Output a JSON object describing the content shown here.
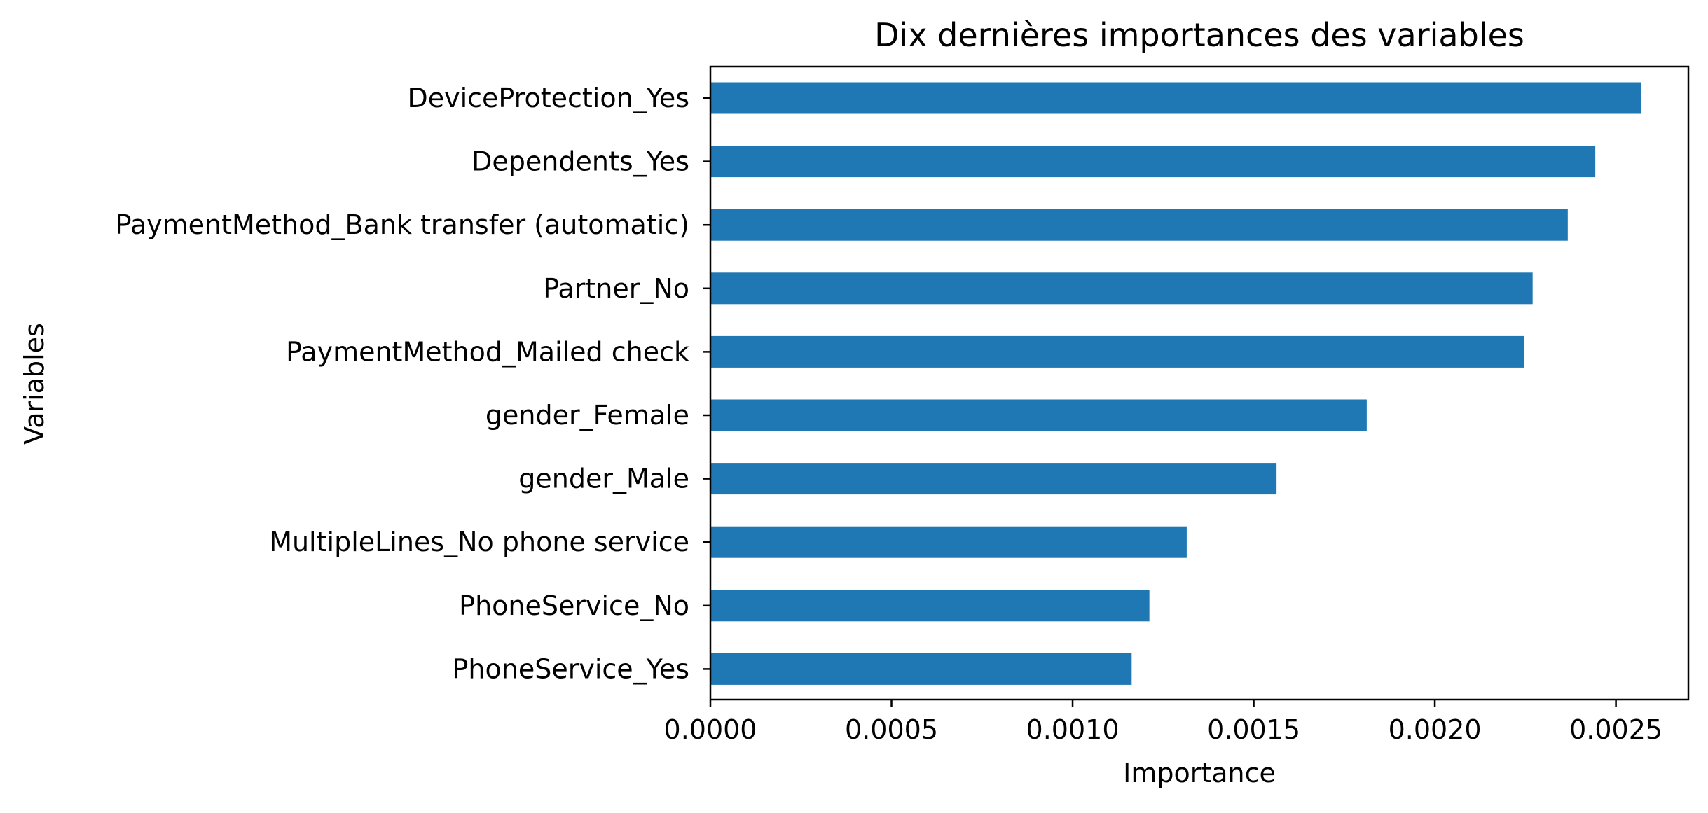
{
  "chart_data": {
    "type": "bar",
    "orientation": "horizontal",
    "title": "Dix dernières importances des variables",
    "xlabel": "Importance",
    "ylabel": "Variables",
    "categories": [
      "DeviceProtection_Yes",
      "Dependents_Yes",
      "PaymentMethod_Bank transfer (automatic)",
      "Partner_No",
      "PaymentMethod_Mailed check",
      "gender_Female",
      "gender_Male",
      "MultipleLines_No phone service",
      "PhoneService_No",
      "PhoneService_Yes"
    ],
    "values": [
      0.00257,
      0.002443,
      0.002367,
      0.00227,
      0.002247,
      0.001812,
      0.001563,
      0.001315,
      0.001212,
      0.001163
    ],
    "xlim": [
      0,
      0.0027
    ],
    "xticks": [
      0,
      0.0005,
      0.001,
      0.0015,
      0.002,
      0.0025
    ],
    "xtick_labels": [
      "0.0000",
      "0.0005",
      "0.0010",
      "0.0015",
      "0.0020",
      "0.0025"
    ],
    "bar_color": "#1f77b4",
    "grid": false,
    "legend": false
  }
}
